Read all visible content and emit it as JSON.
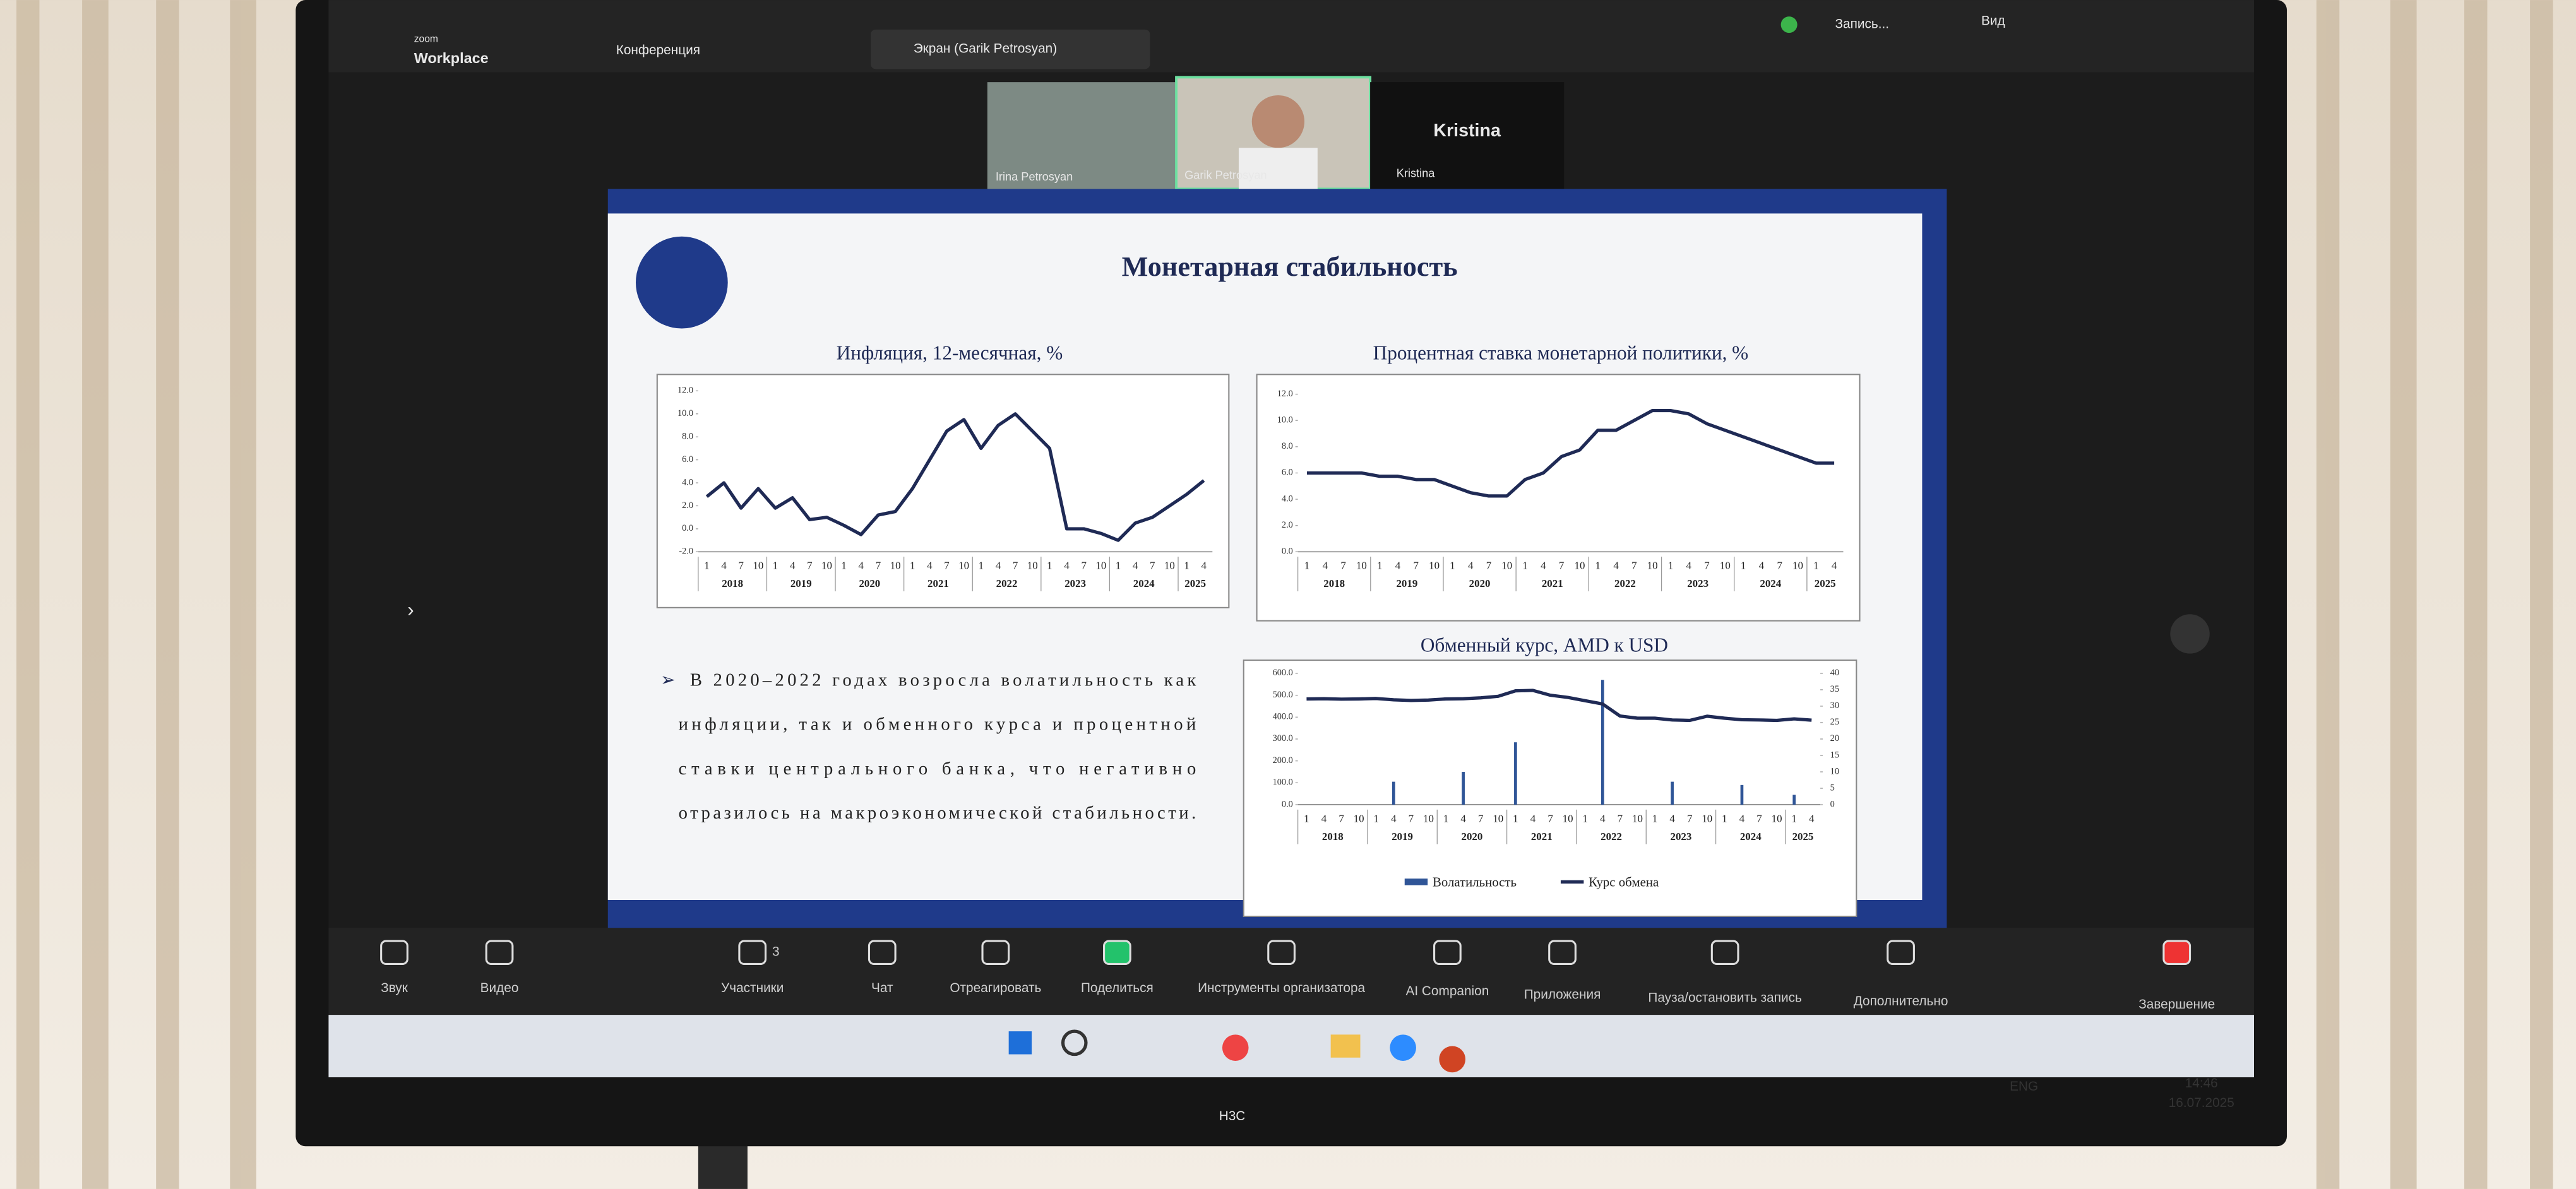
{
  "zoom": {
    "logo": "zoom",
    "product": "Workplace",
    "meeting": "Конференция",
    "share_tab": "Экран (Garik Petrosyan)",
    "recording": "Запись...",
    "view": "Вид",
    "participants": [
      {
        "name": "Irina Petrosyan"
      },
      {
        "name": "Garik Petrosyan"
      },
      {
        "name": "Kristina",
        "caption": "Kristina"
      }
    ],
    "toolbar": [
      {
        "label": "Звук"
      },
      {
        "label": "Видео"
      },
      {
        "label": "Участники",
        "badge": 3
      },
      {
        "label": "Чат"
      },
      {
        "label": "Отреагировать"
      },
      {
        "label": "Поделиться"
      },
      {
        "label": "Инструменты организатора"
      },
      {
        "label": "AI Companion"
      },
      {
        "label": "Приложения"
      },
      {
        "label": "Пауза/остановить запись"
      },
      {
        "label": "Дополнительно"
      },
      {
        "label": "Завершение"
      }
    ]
  },
  "taskbar": {
    "language": "ENG",
    "time": "14:46",
    "date": "16.07.2025"
  },
  "monitor": {
    "brand": "H3C"
  },
  "slide": {
    "title": "Монетарная стабильность",
    "bullet": [
      "В 2020–2022 годах возросла волатильность как",
      "инфляции, так и обменного курса и процентной",
      "ставки центрального банка, что негативно",
      "отразилось на макроэкономической стабильности."
    ]
  },
  "chart_data": [
    {
      "type": "line",
      "title": "Инфляция, 12-месячная, %",
      "categories": [
        "1",
        "4",
        "7",
        "10",
        "1",
        "4",
        "7",
        "10",
        "1",
        "4",
        "7",
        "10",
        "1",
        "4",
        "7",
        "10",
        "1",
        "4",
        "7",
        "10",
        "1",
        "4",
        "7",
        "10",
        "1",
        "4",
        "7",
        "10",
        "1",
        "4"
      ],
      "years": [
        "2018",
        "2019",
        "2020",
        "2021",
        "2022",
        "2023",
        "2024",
        "2025"
      ],
      "series": [
        {
          "color": "#1f2a55",
          "values": [
            2.8,
            4.0,
            1.8,
            3.5,
            1.8,
            2.7,
            0.8,
            1.0,
            0.3,
            -0.5,
            1.2,
            1.5,
            3.5,
            6.0,
            8.5,
            9.5,
            7.0,
            9.0,
            10.0,
            8.5,
            7.0,
            0.0,
            0.0,
            -0.4,
            -1.0,
            0.5,
            1.0,
            2.0,
            3.0,
            4.2
          ]
        }
      ],
      "ylim": [
        -2,
        12
      ],
      "yticks": [
        {
          "value": -2,
          "label": "-2.0"
        },
        {
          "value": 0,
          "label": "0.0"
        },
        {
          "value": 2,
          "label": "2.0"
        },
        {
          "value": 4,
          "label": "4.0"
        },
        {
          "value": 6,
          "label": "6.0"
        },
        {
          "value": 8,
          "label": "8.0"
        },
        {
          "value": 10,
          "label": "10.0"
        },
        {
          "value": 12,
          "label": "12.0"
        }
      ]
    },
    {
      "type": "line",
      "title": "Процентная ставка монетарной политики, %",
      "categories": [
        "1",
        "4",
        "7",
        "10",
        "1",
        "4",
        "7",
        "10",
        "1",
        "4",
        "7",
        "10",
        "1",
        "4",
        "7",
        "10",
        "1",
        "4",
        "7",
        "10",
        "1",
        "4",
        "7",
        "10",
        "1",
        "4",
        "7",
        "10",
        "1",
        "4"
      ],
      "years": [
        "2018",
        "2019",
        "2020",
        "2021",
        "2022",
        "2023",
        "2024",
        "2025"
      ],
      "series": [
        {
          "color": "#1f2a55",
          "values": [
            6.0,
            6.0,
            6.0,
            6.0,
            5.75,
            5.75,
            5.5,
            5.5,
            5.0,
            4.5,
            4.25,
            4.25,
            5.5,
            6.0,
            7.25,
            7.75,
            9.25,
            9.25,
            10.0,
            10.75,
            10.75,
            10.5,
            9.75,
            9.25,
            8.75,
            8.25,
            7.75,
            7.25,
            6.75,
            6.75
          ]
        }
      ],
      "ylim": [
        0,
        12
      ],
      "yticks": [
        {
          "value": 0,
          "label": "0.0"
        },
        {
          "value": 2,
          "label": "2.0"
        },
        {
          "value": 4,
          "label": "4.0"
        },
        {
          "value": 6,
          "label": "6.0"
        },
        {
          "value": 8,
          "label": "8.0"
        },
        {
          "value": 10,
          "label": "10.0"
        },
        {
          "value": 12,
          "label": "12.0"
        }
      ]
    },
    {
      "type": "combo",
      "title": "Обменный курс, AMD к USD",
      "categories": [
        "1",
        "4",
        "7",
        "10",
        "1",
        "4",
        "7",
        "10",
        "1",
        "4",
        "7",
        "10",
        "1",
        "4",
        "7",
        "10",
        "1",
        "4",
        "7",
        "10",
        "1",
        "4",
        "7",
        "10",
        "1",
        "4",
        "7",
        "10",
        "1",
        "4"
      ],
      "years": [
        "2018",
        "2019",
        "2020",
        "2021",
        "2022",
        "2023",
        "2024",
        "2025"
      ],
      "series": [
        {
          "name": "Волатильность",
          "color": "#2f5597",
          "axis": "y2",
          "values": [
            0,
            0,
            0,
            0,
            0,
            7,
            0,
            0,
            0,
            10,
            0,
            0,
            19,
            0,
            0,
            0,
            0,
            38,
            0,
            0,
            0,
            7,
            0,
            0,
            0,
            6,
            0,
            0,
            3,
            0
          ]
        },
        {
          "name": "Курс обмена",
          "color": "#1f2a55",
          "values": [
            483,
            484,
            482,
            483,
            485,
            479,
            476,
            478,
            483,
            484,
            488,
            495,
            520,
            522,
            500,
            490,
            475,
            460,
            405,
            395,
            395,
            387,
            385,
            404,
            395,
            388,
            387,
            385,
            392,
            386
          ]
        }
      ],
      "ylim": [
        0,
        600
      ],
      "yticks": [
        {
          "value": 0,
          "label": "0.0"
        },
        {
          "value": 100,
          "label": "100.0"
        },
        {
          "value": 200,
          "label": "200.0"
        },
        {
          "value": 300,
          "label": "300.0"
        },
        {
          "value": 400,
          "label": "400.0"
        },
        {
          "value": 500,
          "label": "500.0"
        },
        {
          "value": 600,
          "label": "600.0"
        }
      ],
      "y2lim": [
        0,
        40
      ],
      "y2ticks": [
        0,
        5,
        10,
        15,
        20,
        25,
        30,
        35,
        40
      ]
    }
  ]
}
